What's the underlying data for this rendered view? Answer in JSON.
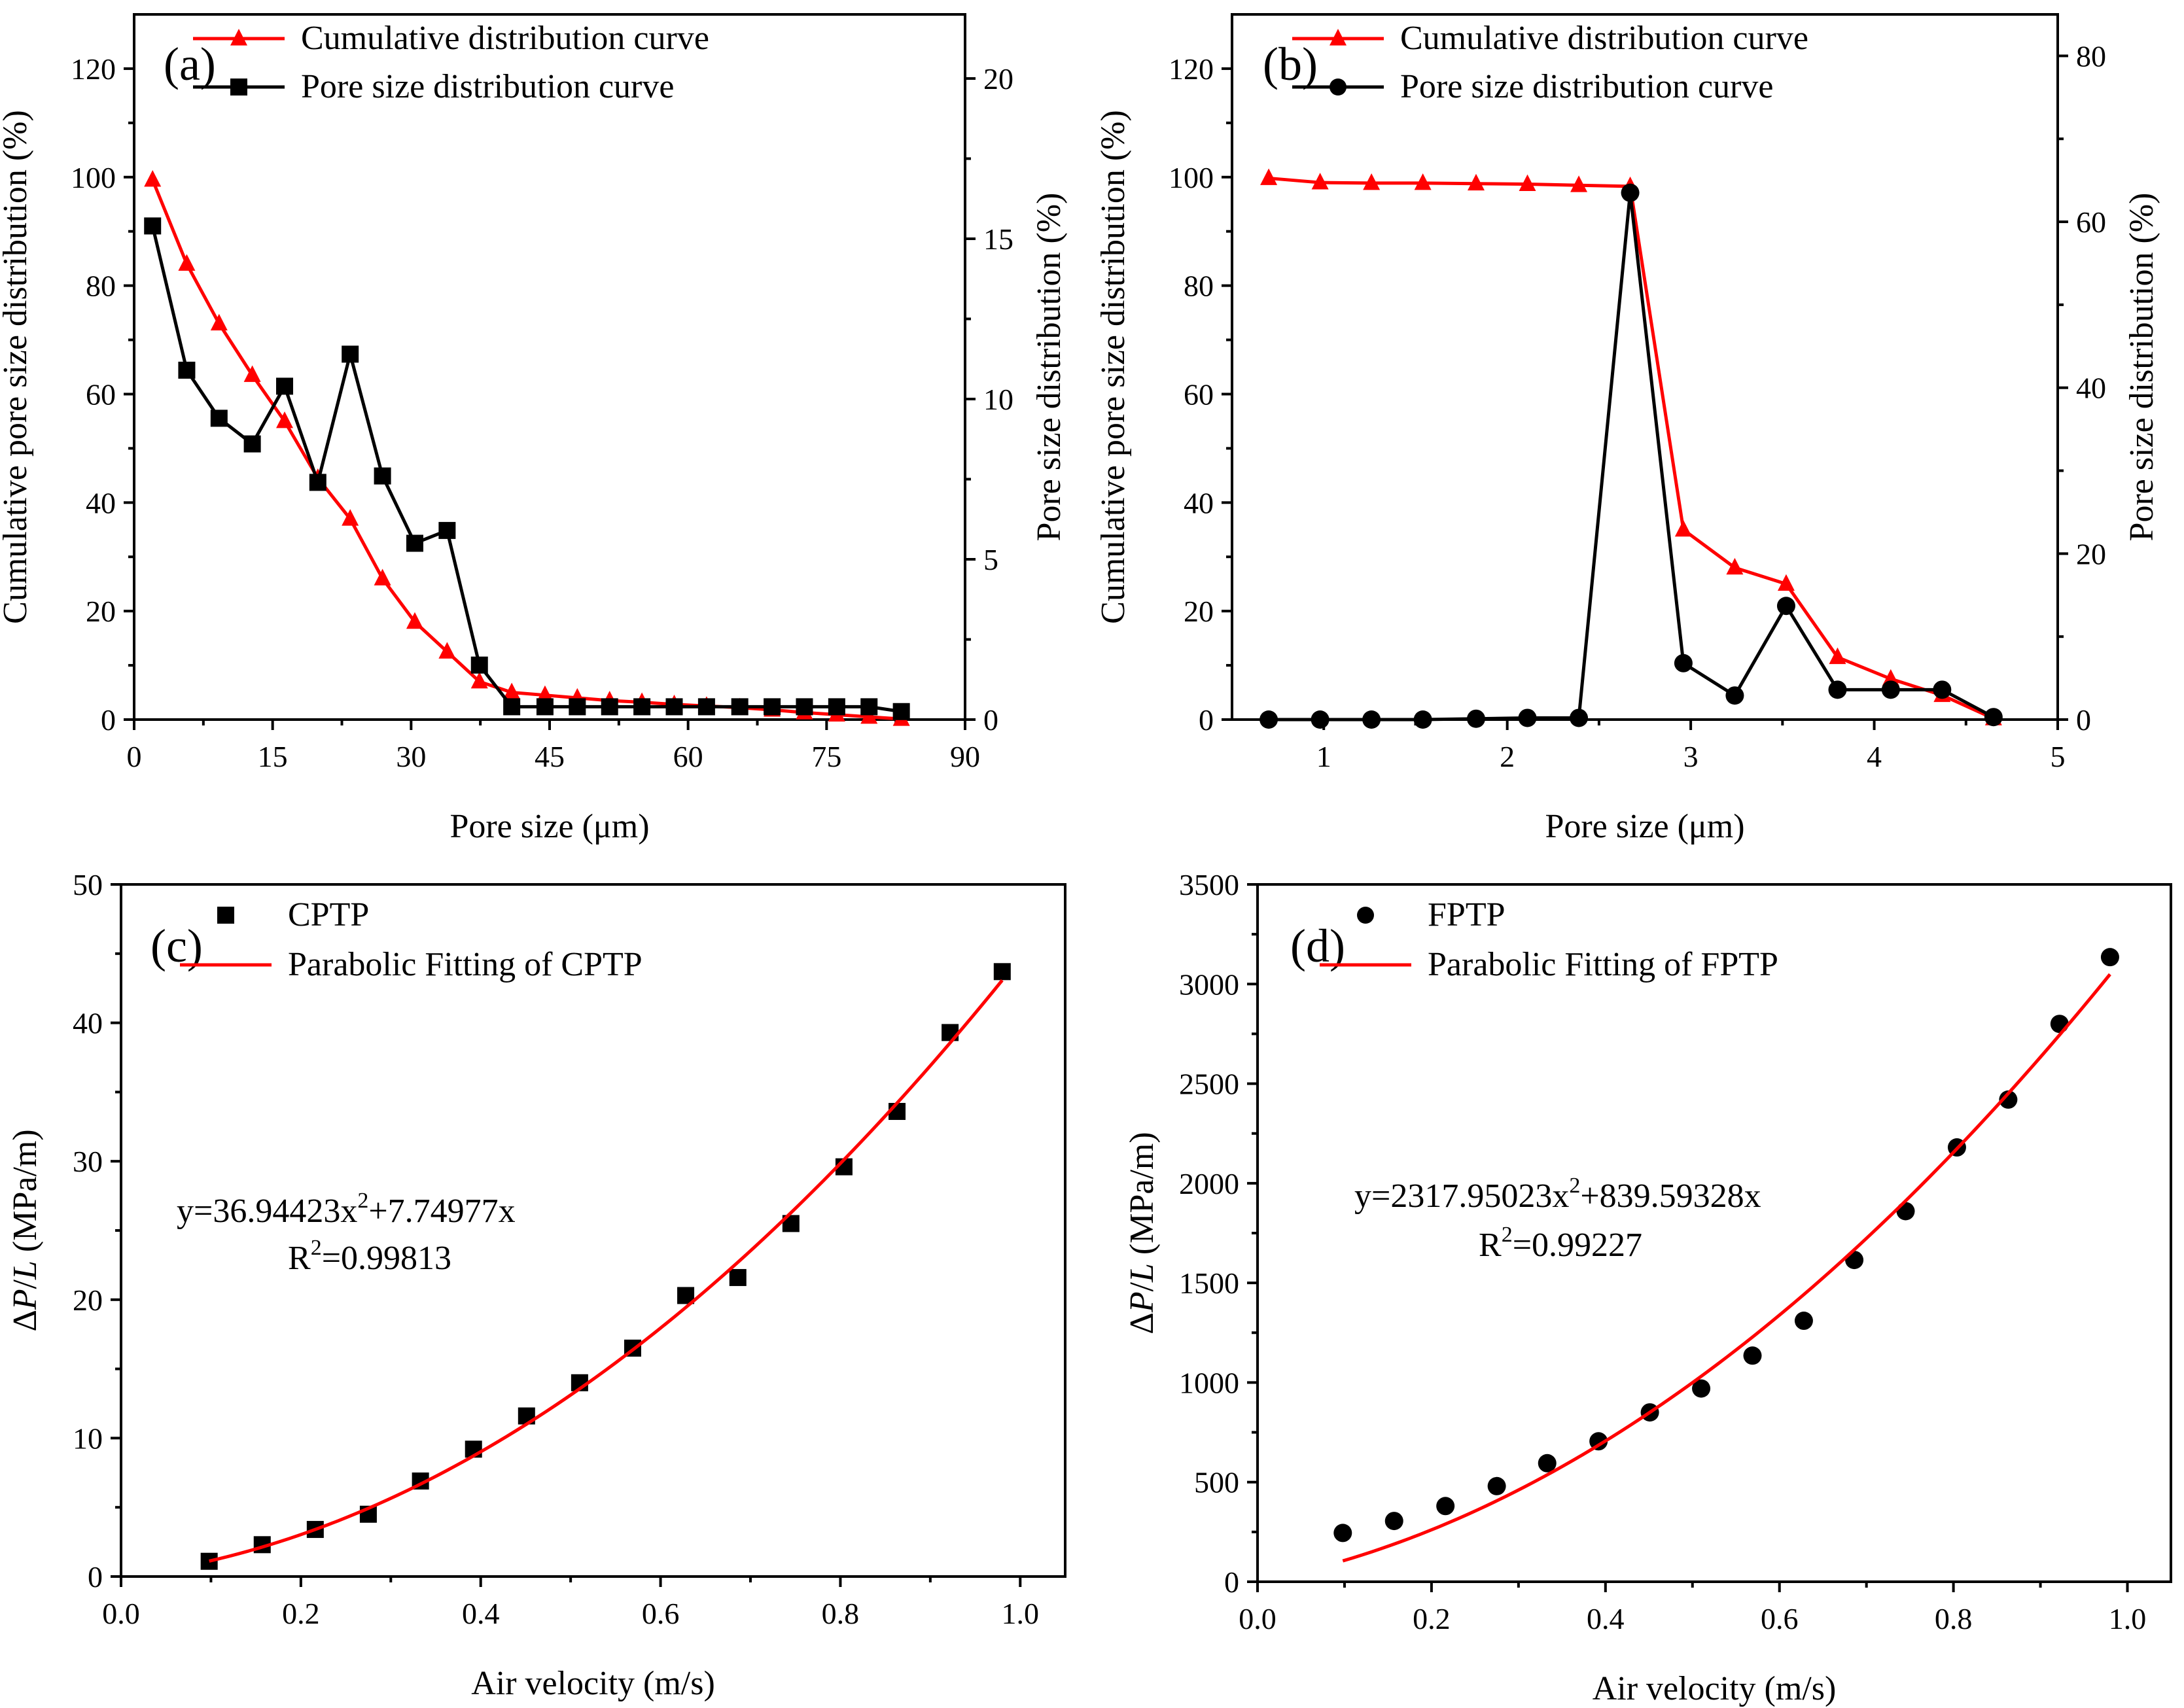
{
  "chart_data": [
    {
      "id": "a",
      "type": "line",
      "panel_label": "(a)",
      "xlabel": "Pore size (μm)",
      "ylabel_left": "Cumulative pore size distribution (%)",
      "ylabel_right": "Pore size distribution (%)",
      "xlim": [
        0,
        90
      ],
      "ylim_left": [
        0,
        130
      ],
      "ylim_right": [
        0,
        22
      ],
      "x_ticks": [
        0,
        15,
        30,
        45,
        60,
        75,
        90
      ],
      "y_ticks_left": [
        0,
        20,
        40,
        60,
        80,
        100,
        120
      ],
      "y_ticks_right": [
        0,
        5,
        10,
        15,
        20
      ],
      "legend_position": "top",
      "series": [
        {
          "name": "Cumulative distribution curve",
          "axis": "left",
          "color": "#ff0000",
          "marker": "triangle",
          "x": [
            2,
            5.7,
            9.2,
            12.8,
            16.3,
            19.9,
            23.4,
            26.9,
            30.4,
            33.9,
            37.4,
            40.9,
            44.5,
            48,
            51.5,
            55,
            58.5,
            62,
            65.6,
            69.1,
            72.6,
            76.1,
            79.6,
            83.1
          ],
          "values": [
            99.5,
            84,
            73,
            63.5,
            55,
            44.5,
            37,
            26,
            18,
            12.5,
            7,
            5,
            4.5,
            4,
            3.5,
            3.2,
            2.8,
            2.5,
            2.2,
            1.8,
            1.3,
            0.9,
            0.5,
            0.1
          ]
        },
        {
          "name": "Pore size distribution curve",
          "axis": "right",
          "color": "#000000",
          "marker": "square",
          "x": [
            2,
            5.7,
            9.2,
            12.8,
            16.3,
            19.9,
            23.4,
            26.9,
            30.4,
            33.9,
            37.4,
            40.9,
            44.5,
            48,
            51.5,
            55,
            58.5,
            62,
            65.6,
            69.1,
            72.6,
            76.1,
            79.6,
            83.1
          ],
          "values": [
            15.4,
            10.9,
            9.4,
            8.6,
            10.4,
            7.4,
            11.4,
            7.6,
            5.5,
            5.9,
            1.7,
            0.4,
            0.4,
            0.4,
            0.4,
            0.4,
            0.4,
            0.4,
            0.4,
            0.4,
            0.4,
            0.4,
            0.4,
            0.25
          ]
        }
      ]
    },
    {
      "id": "b",
      "type": "line",
      "panel_label": "(b)",
      "xlabel": "Pore size (μm)",
      "ylabel_left": "Cumulative pore size distribution (%)",
      "ylabel_right": "Pore size distribution (%)",
      "xlim": [
        0.5,
        5
      ],
      "ylim_left": [
        0,
        130
      ],
      "ylim_right": [
        0,
        85
      ],
      "x_ticks": [
        1,
        2,
        3,
        4,
        5
      ],
      "y_ticks_left": [
        0,
        20,
        40,
        60,
        80,
        100,
        120
      ],
      "y_ticks_right": [
        0,
        20,
        40,
        60,
        80
      ],
      "legend_position": "top",
      "series": [
        {
          "name": "Cumulative distribution curve",
          "axis": "left",
          "color": "#ff0000",
          "marker": "triangle",
          "x": [
            0.7,
            0.98,
            1.26,
            1.54,
            1.83,
            2.11,
            2.39,
            2.67,
            2.96,
            3.24,
            3.52,
            3.8,
            4.09,
            4.37,
            4.65
          ],
          "values": [
            99.8,
            99,
            98.9,
            98.9,
            98.8,
            98.7,
            98.5,
            98.3,
            35,
            28,
            25,
            11.5,
            7.5,
            4.5,
            0.2
          ]
        },
        {
          "name": "Pore size distribution curve",
          "axis": "right",
          "color": "#000000",
          "marker": "circle",
          "x": [
            0.7,
            0.98,
            1.26,
            1.54,
            1.83,
            2.11,
            2.39,
            2.67,
            2.96,
            3.24,
            3.52,
            3.8,
            4.09,
            4.37,
            4.65
          ],
          "values": [
            0,
            0,
            0,
            0,
            0.1,
            0.2,
            0.2,
            63.5,
            6.8,
            2.9,
            13.7,
            3.6,
            3.6,
            3.6,
            0.3
          ]
        }
      ]
    },
    {
      "id": "c",
      "type": "scatter",
      "panel_label": "(c)",
      "xlabel": "Air velocity (m/s)",
      "ylabel": "ΔP/L (MPa/m)",
      "xlim": [
        0,
        1.05
      ],
      "ylim": [
        0,
        50
      ],
      "x_ticks": [
        "0.0",
        "0.2",
        "0.4",
        "0.6",
        "0.8",
        "1.0"
      ],
      "y_ticks": [
        "0",
        "10",
        "20",
        "30",
        "40",
        "50"
      ],
      "legend_position": "top-left",
      "series": [
        {
          "name": "CPTP",
          "color": "#000000",
          "marker": "square",
          "x": [
            0.098,
            0.157,
            0.216,
            0.275,
            0.333,
            0.392,
            0.451,
            0.51,
            0.569,
            0.628,
            0.686,
            0.745,
            0.804,
            0.863,
            0.922,
            0.98
          ],
          "values": [
            1.1,
            2.3,
            3.4,
            4.5,
            6.9,
            9.2,
            11.6,
            14,
            16.5,
            20.3,
            21.6,
            25.5,
            29.6,
            33.6,
            39.3,
            43.7
          ]
        },
        {
          "name": "Parabolic Fitting of CPTP",
          "color": "#ff0000",
          "marker": "line",
          "fit": {
            "a": 36.94423,
            "b": 7.74977,
            "x_start": 0.098,
            "x_end": 0.98
          }
        }
      ],
      "annotation": {
        "equation_prefix": "y=36.94423x",
        "equation_exp": "2",
        "equation_suffix": "+7.74977x",
        "r2_prefix": "R",
        "r2_exp": "2",
        "r2_suffix": "=0.99813"
      }
    },
    {
      "id": "d",
      "type": "scatter",
      "panel_label": "(d)",
      "xlabel": "Air velocity (m/s)",
      "ylabel": "ΔP/L (MPa/m)",
      "xlim": [
        0,
        1.05
      ],
      "ylim": [
        0,
        3500
      ],
      "x_ticks": [
        "0.0",
        "0.2",
        "0.4",
        "0.6",
        "0.8",
        "1.0"
      ],
      "y_ticks": [
        "0",
        "500",
        "1000",
        "1500",
        "2000",
        "2500",
        "3000",
        "3500"
      ],
      "legend_position": "top-left",
      "series": [
        {
          "name": "FPTP",
          "color": "#000000",
          "marker": "circle",
          "x": [
            0.098,
            0.157,
            0.216,
            0.275,
            0.333,
            0.392,
            0.451,
            0.51,
            0.569,
            0.628,
            0.686,
            0.745,
            0.804,
            0.863,
            0.922,
            0.98
          ],
          "values": [
            245,
            305,
            380,
            480,
            595,
            705,
            850,
            970,
            1135,
            1310,
            1615,
            1860,
            2180,
            2420,
            2800,
            3135
          ]
        },
        {
          "name": "Parabolic Fitting of FPTP",
          "color": "#ff0000",
          "marker": "line",
          "fit": {
            "a": 2317.95023,
            "b": 839.59328,
            "x_start": 0.098,
            "x_end": 0.98
          }
        }
      ],
      "annotation": {
        "equation_prefix": "y=2317.95023x",
        "equation_exp": "2",
        "equation_suffix": "+839.59328x",
        "r2_prefix": "R",
        "r2_exp": "2",
        "r2_suffix": "=0.99227"
      }
    }
  ]
}
